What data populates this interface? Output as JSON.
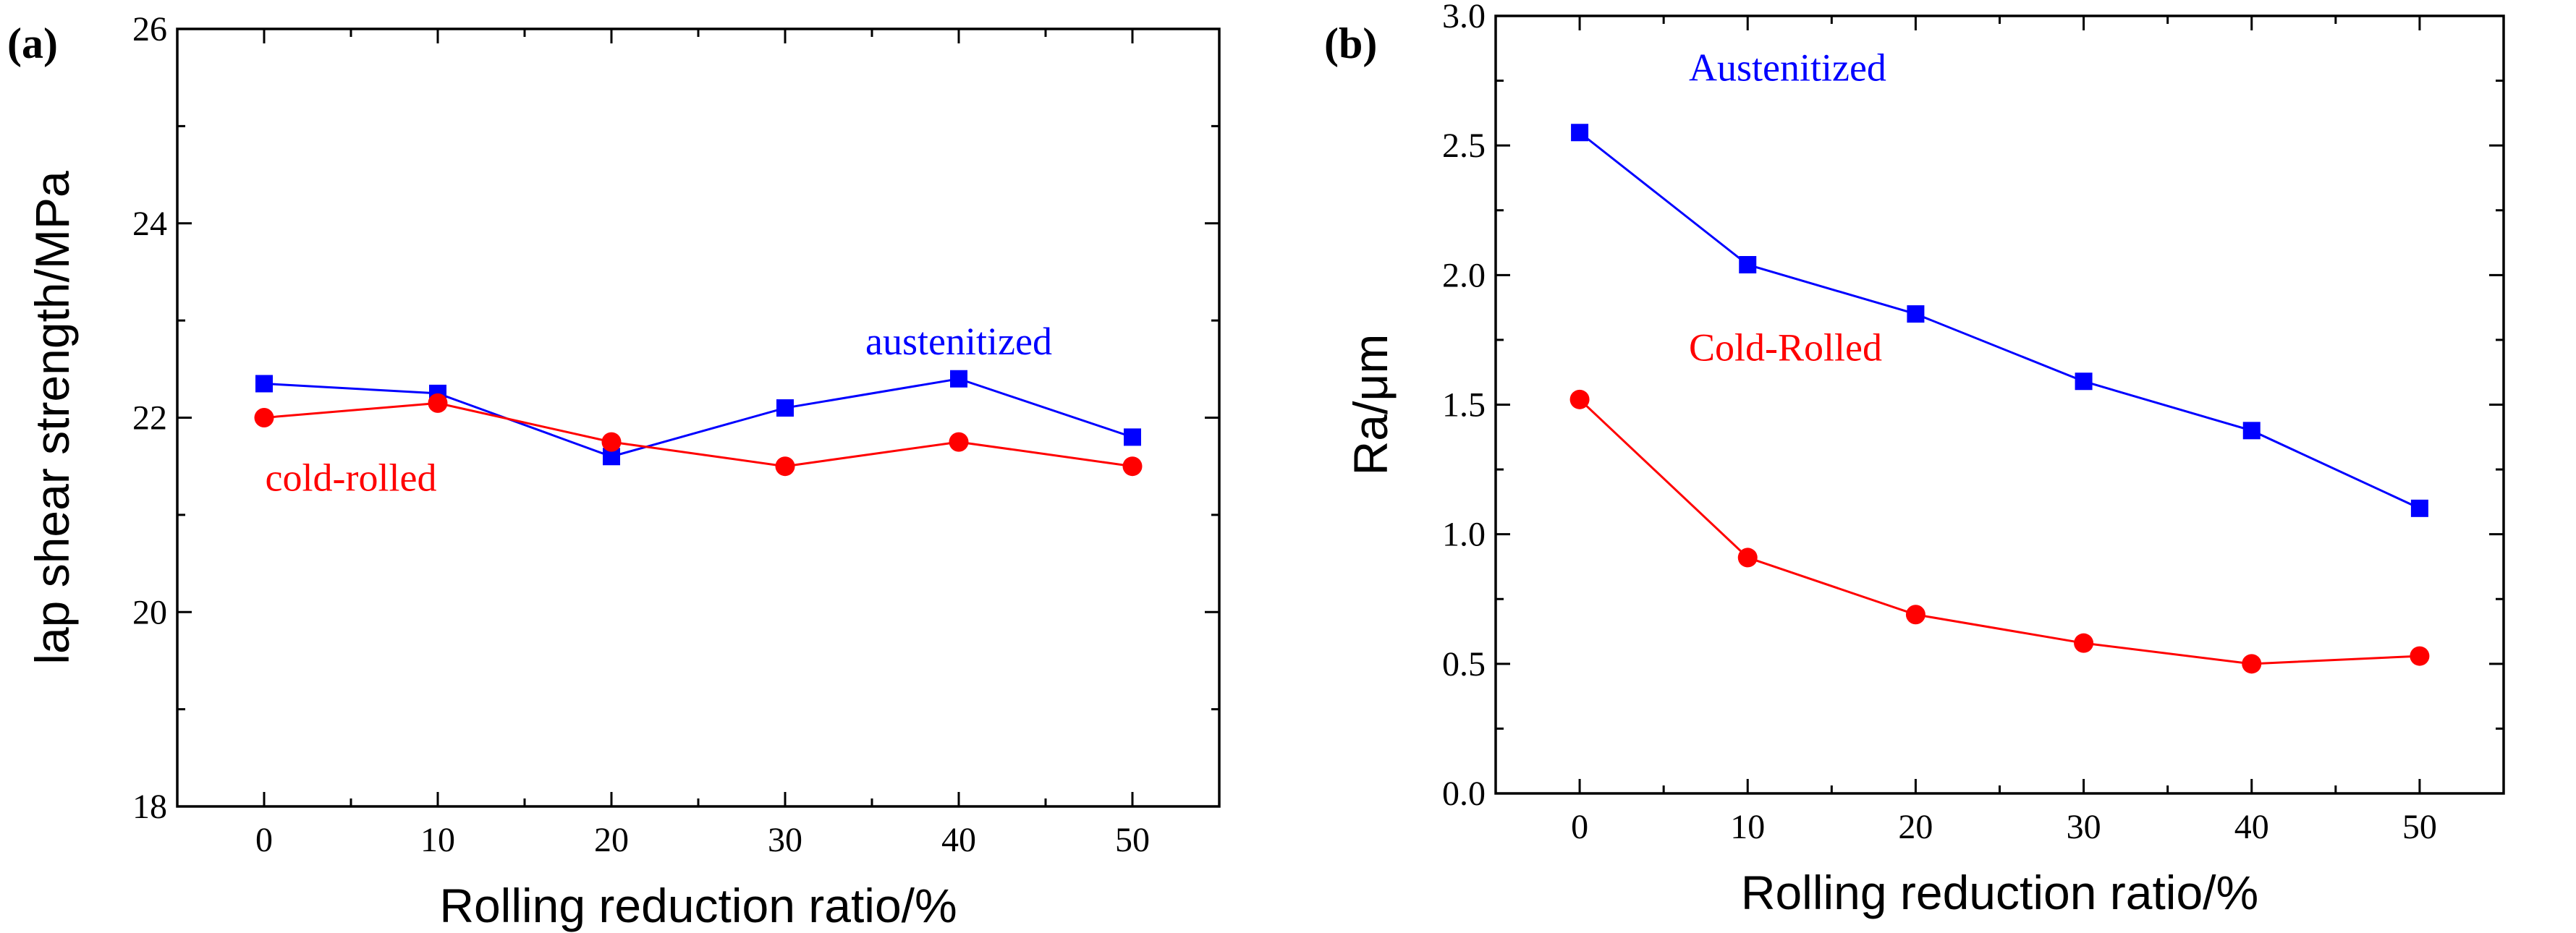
{
  "chart_data": [
    {
      "type": "line",
      "panel_label": "(a)",
      "xlabel": "Rolling reduction ratio/%",
      "ylabel": "lap shear strength/MPa",
      "x": [
        0,
        10,
        20,
        30,
        40,
        50
      ],
      "xticks": [
        0,
        10,
        20,
        30,
        40,
        50
      ],
      "yticks": [
        18,
        20,
        22,
        24,
        26
      ],
      "xlim": [
        -5,
        55
      ],
      "ylim": [
        18,
        26
      ],
      "series": [
        {
          "name": "austenitized",
          "color": "#0000ff",
          "marker": "square",
          "values": [
            22.35,
            22.25,
            21.6,
            22.1,
            22.4,
            21.8
          ]
        },
        {
          "name": "cold-rolled",
          "color": "#ff0000",
          "marker": "circle",
          "values": [
            22.0,
            22.15,
            21.75,
            21.5,
            21.75,
            21.5
          ]
        }
      ],
      "annotations": [
        {
          "text": "austenitized",
          "color": "#0000ff",
          "x": 40,
          "y": 22.65
        },
        {
          "text": "cold-rolled",
          "color": "#ff0000",
          "x": 5,
          "y": 21.25
        }
      ]
    },
    {
      "type": "line",
      "panel_label": "(b)",
      "xlabel": "Rolling reduction ratio/%",
      "ylabel": "Ra/μm",
      "x": [
        0,
        10,
        20,
        30,
        40,
        50
      ],
      "xticks": [
        0,
        10,
        20,
        30,
        40,
        50
      ],
      "yticks": [
        "0.0",
        "0.5",
        "1.0",
        "1.5",
        "2.0",
        "2.5",
        "3.0"
      ],
      "xlim": [
        -5,
        55
      ],
      "ylim": [
        0,
        3
      ],
      "series": [
        {
          "name": "Austenitized",
          "color": "#0000ff",
          "marker": "square",
          "values": [
            2.55,
            2.04,
            1.85,
            1.59,
            1.4,
            1.1
          ]
        },
        {
          "name": "Cold-Rolled",
          "color": "#ff0000",
          "marker": "circle",
          "values": [
            1.52,
            0.91,
            0.69,
            0.58,
            0.5,
            0.53
          ]
        }
      ],
      "annotations": [
        {
          "text": "Austenitized",
          "color": "#0000ff",
          "x": 6.5,
          "y": 2.75
        },
        {
          "text": "Cold-Rolled",
          "color": "#ff0000",
          "x": 6.5,
          "y": 1.67
        }
      ]
    }
  ]
}
